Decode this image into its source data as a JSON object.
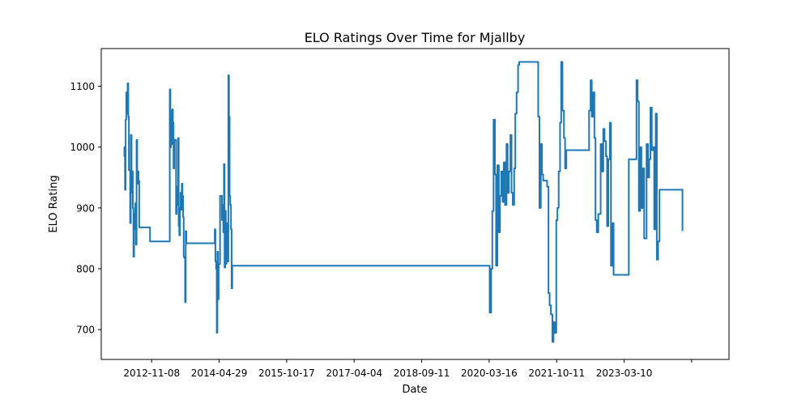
{
  "chart_data": {
    "type": "line",
    "title": "ELO Ratings Over Time for Mjallby",
    "xlabel": "Date",
    "ylabel": "ELO Rating",
    "x_tick_labels": [
      "2012-11-08",
      "2014-04-29",
      "2015-10-17",
      "2017-04-04",
      "2018-09-11",
      "2020-03-16",
      "2021-10-11",
      "2023-03-10",
      ""
    ],
    "y_ticks": [
      700,
      800,
      900,
      1000,
      1100
    ],
    "xlim": [
      "2011-10-04",
      "2025-06-06"
    ],
    "ylim": [
      651,
      1162
    ],
    "grid": false,
    "line_color": "#1f77b4",
    "series": [
      {
        "x": [
          "2012-04-01",
          "2012-04-05",
          "2012-04-10",
          "2012-04-15",
          "2012-04-20",
          "2012-04-25",
          "2012-05-01",
          "2012-05-06",
          "2012-05-11",
          "2012-05-16",
          "2012-05-21",
          "2012-05-26",
          "2012-06-01",
          "2012-06-06",
          "2012-06-11",
          "2012-06-16",
          "2012-06-21",
          "2012-06-26",
          "2012-07-01",
          "2012-07-06",
          "2012-07-11",
          "2012-07-16",
          "2012-07-21",
          "2012-07-26",
          "2012-08-01",
          "2012-08-06",
          "2012-08-11",
          "2012-08-16",
          "2012-08-21",
          "2012-08-26",
          "2012-09-01",
          "2012-09-06",
          "2012-09-11",
          "2012-09-16",
          "2012-09-21",
          "2012-09-26",
          "2012-10-01",
          "2012-10-06",
          "2012-10-11",
          "2012-10-16",
          "2012-10-21",
          "2012-10-26",
          "2013-04-01",
          "2013-04-06",
          "2013-04-11",
          "2013-04-16",
          "2013-04-21",
          "2013-04-26",
          "2013-05-01",
          "2013-05-06",
          "2013-05-11",
          "2013-05-16",
          "2013-05-21",
          "2013-05-26",
          "2013-06-01",
          "2013-06-06",
          "2013-06-11",
          "2013-06-16",
          "2013-06-21",
          "2013-06-26",
          "2013-07-01",
          "2013-07-06",
          "2013-07-11",
          "2013-07-16",
          "2013-07-21",
          "2013-07-26",
          "2013-08-01",
          "2013-08-06",
          "2013-08-11",
          "2013-08-16",
          "2013-08-21",
          "2013-08-26",
          "2013-09-01",
          "2013-09-06",
          "2013-09-11",
          "2013-09-16",
          "2013-09-21",
          "2013-09-26",
          "2013-10-01",
          "2013-10-06",
          "2013-10-11",
          "2013-10-16",
          "2013-10-21",
          "2013-10-26",
          "2013-11-01",
          "2014-03-25",
          "2014-03-30",
          "2014-04-05",
          "2014-04-10",
          "2014-04-15",
          "2014-04-20",
          "2014-04-25",
          "2014-05-01",
          "2014-05-06",
          "2014-05-11",
          "2014-05-16",
          "2014-05-21",
          "2014-05-26",
          "2014-06-01",
          "2014-06-06",
          "2014-06-11",
          "2014-06-16",
          "2014-06-21",
          "2014-06-26",
          "2014-07-01",
          "2014-07-06",
          "2014-07-11",
          "2014-07-16",
          "2014-07-21",
          "2014-07-26",
          "2014-08-01",
          "2014-08-06",
          "2014-08-11",
          "2014-08-16",
          "2014-08-21",
          "2014-08-26",
          "2014-09-01",
          "2014-09-06",
          "2014-09-11",
          "2014-09-16",
          "2014-09-21",
          "2014-09-26",
          "2014-10-01",
          "2014-10-06",
          "2014-10-11",
          "2014-10-16",
          "2014-10-21",
          "2014-10-26",
          "2014-11-01",
          "2020-03-20",
          "2020-04-01",
          "2020-04-10",
          "2020-04-20",
          "2020-05-01",
          "2020-05-10",
          "2020-05-20",
          "2020-06-01",
          "2020-06-10",
          "2020-06-20",
          "2020-07-01",
          "2020-07-10",
          "2020-07-20",
          "2020-08-01",
          "2020-08-10",
          "2020-08-20",
          "2020-09-01",
          "2020-09-10",
          "2020-09-20",
          "2020-10-01",
          "2020-10-10",
          "2020-10-20",
          "2020-11-01",
          "2020-11-10",
          "2020-11-20",
          "2020-12-01",
          "2021-04-01",
          "2021-04-10",
          "2021-04-20",
          "2021-05-01",
          "2021-05-10",
          "2021-05-20",
          "2021-06-01",
          "2021-06-10",
          "2021-06-20",
          "2021-07-01",
          "2021-07-10",
          "2021-07-20",
          "2021-08-01",
          "2021-08-10",
          "2021-08-20",
          "2021-09-01",
          "2021-09-10",
          "2021-09-20",
          "2021-10-01",
          "2021-10-10",
          "2021-10-20",
          "2021-11-01",
          "2021-11-10",
          "2021-11-20",
          "2021-12-01",
          "2022-04-01",
          "2022-04-10",
          "2022-04-20",
          "2022-05-01",
          "2022-05-10",
          "2022-05-20",
          "2022-06-01",
          "2022-06-10",
          "2022-06-20",
          "2022-07-01",
          "2022-07-10",
          "2022-07-20",
          "2022-08-01",
          "2022-08-10",
          "2022-08-20",
          "2022-09-01",
          "2022-09-10",
          "2022-09-20",
          "2022-10-01",
          "2022-10-10",
          "2022-10-20",
          "2022-11-01",
          "2022-11-10",
          "2022-11-20",
          "2022-12-01",
          "2023-04-01",
          "2023-04-10",
          "2023-04-20",
          "2023-05-01",
          "2023-05-10",
          "2023-05-20",
          "2023-06-01",
          "2023-06-10",
          "2023-06-20",
          "2023-07-01",
          "2023-07-10",
          "2023-07-20",
          "2023-08-01",
          "2023-08-10",
          "2023-08-20",
          "2023-09-01",
          "2023-09-10",
          "2023-09-20",
          "2023-10-01",
          "2023-10-10",
          "2023-10-20",
          "2023-11-01",
          "2023-11-10",
          "2023-11-20",
          "2023-12-01",
          "2024-06-01"
        ],
        "y": [
          1000,
          985,
          930,
          1045,
          1090,
          1055,
          1105,
          1050,
          962,
          962,
          875,
          1020,
          925,
          960,
          900,
          820,
          890,
          865,
          908,
          840,
          1012,
          940,
          960,
          945,
          868,
          868,
          868,
          868,
          868,
          868,
          868,
          868,
          868,
          868,
          868,
          868,
          868,
          868,
          868,
          868,
          868,
          845,
          1095,
          1000,
          1060,
          1005,
          1062,
          1040,
          965,
          1012,
          1012,
          1012,
          890,
          935,
          905,
          1015,
          870,
          855,
          900,
          925,
          897,
          940,
          920,
          885,
          820,
          818,
          745,
          862,
          842,
          842,
          842,
          842,
          842,
          842,
          842,
          842,
          842,
          842,
          842,
          842,
          842,
          842,
          842,
          842,
          842,
          865,
          812,
          800,
          695,
          828,
          750,
          808,
          808,
          920,
          920,
          920,
          880,
          905,
          860,
          972,
          802,
          895,
          808,
          870,
          875,
          812,
          1118,
          1050,
          920,
          905,
          865,
          768,
          805,
          805,
          805,
          805,
          805,
          805,
          805,
          805,
          805,
          805,
          805,
          805,
          805,
          805,
          805,
          805,
          805,
          728,
          800,
          895,
          1045,
          955,
          805,
          970,
          860,
          920,
          960,
          910,
          975,
          905,
          1005,
          925,
          960,
          1020,
          925,
          905,
          965,
          1055,
          1090,
          1135,
          1140,
          1140,
          1140,
          1140,
          1050,
          900,
          1005,
          955,
          945,
          945,
          945,
          935,
          760,
          740,
          725,
          680,
          712,
          695,
          880,
          900,
          960,
          1040,
          1140,
          1060,
          1015,
          965,
          995,
          995,
          995,
          995,
          995,
          995,
          995,
          1060,
          1110,
          1050,
          1090,
          1015,
          880,
          860,
          890,
          890,
          1005,
          960,
          1030,
          1010,
          985,
          870,
          980,
          1040,
          805,
          875,
          790,
          980,
          980,
          980,
          980,
          980,
          980,
          1110,
          1075,
          895,
          1000,
          900,
          965,
          850,
          850,
          1005,
          950,
          980,
          1065,
          995,
          1000,
          865,
          1055,
          815,
          845,
          930,
          862
        ]
      }
    ]
  }
}
